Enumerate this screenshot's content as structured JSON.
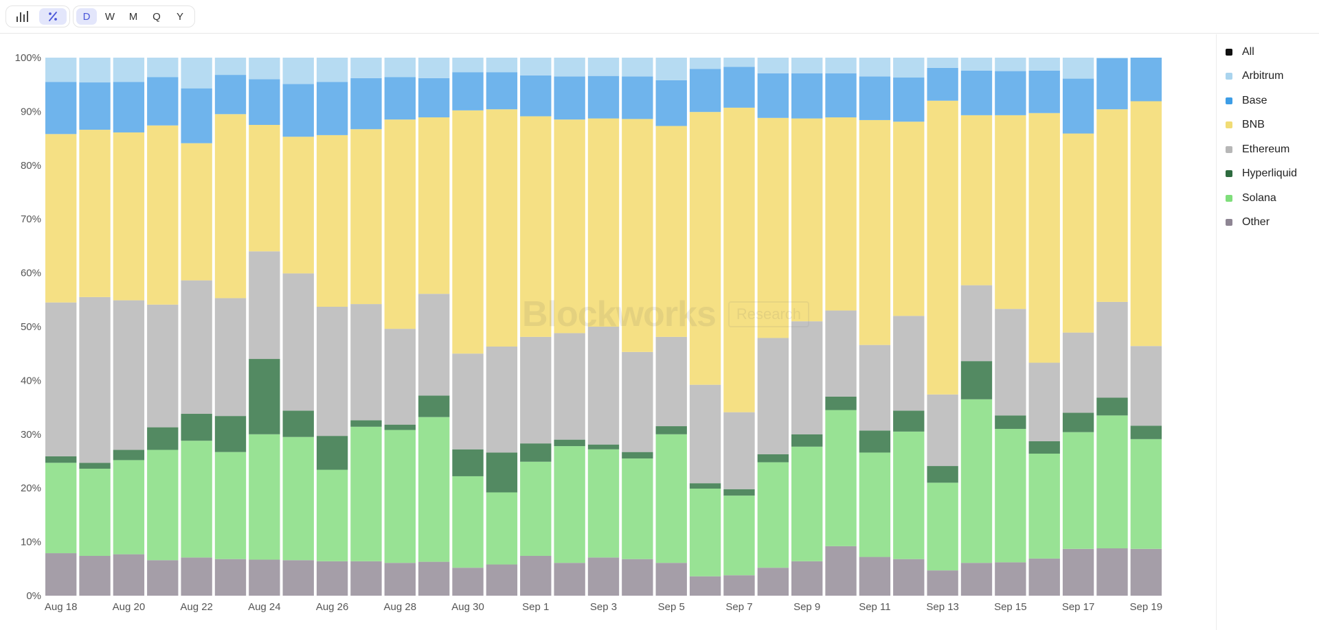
{
  "toolbar": {
    "chart_types": [
      {
        "icon": "bar-chart-icon",
        "active": false
      },
      {
        "icon": "percent-icon",
        "active": true
      }
    ],
    "ranges": [
      {
        "label": "D",
        "active": true
      },
      {
        "label": "W",
        "active": false
      },
      {
        "label": "M",
        "active": false
      },
      {
        "label": "Q",
        "active": false
      },
      {
        "label": "Y",
        "active": false
      }
    ]
  },
  "watermark": {
    "brand": "Blockworks",
    "tag": "Research"
  },
  "legend": [
    {
      "label": "All",
      "color": "#111111"
    },
    {
      "label": "Arbitrum",
      "color": "#aad4ee"
    },
    {
      "label": "Base",
      "color": "#3d9de6"
    },
    {
      "label": "BNB",
      "color": "#f1dc75"
    },
    {
      "label": "Ethereum",
      "color": "#b7b7b7"
    },
    {
      "label": "Hyperliquid",
      "color": "#2e6b3f"
    },
    {
      "label": "Solana",
      "color": "#7fde7b"
    },
    {
      "label": "Other",
      "color": "#8e8593"
    }
  ],
  "chart_data": {
    "type": "bar",
    "stacked": true,
    "normalized": true,
    "title": "",
    "xlabel": "",
    "ylabel": "",
    "ylim": [
      0,
      100
    ],
    "y_ticks": [
      "0%",
      "10%",
      "20%",
      "30%",
      "40%",
      "50%",
      "60%",
      "70%",
      "80%",
      "90%",
      "100%"
    ],
    "x_tick_labels": [
      "Aug 18",
      "Aug 20",
      "Aug 22",
      "Aug 24",
      "Aug 26",
      "Aug 28",
      "Aug 30",
      "Sep 1",
      "Sep 3",
      "Sep 5",
      "Sep 7",
      "Sep 9",
      "Sep 11",
      "Sep 13",
      "Sep 15",
      "Sep 17",
      "Sep 19"
    ],
    "categories": [
      "Aug 18",
      "Aug 19",
      "Aug 20",
      "Aug 21",
      "Aug 22",
      "Aug 23",
      "Aug 24",
      "Aug 25",
      "Aug 26",
      "Aug 27",
      "Aug 28",
      "Aug 29",
      "Aug 30",
      "Aug 31",
      "Sep 1",
      "Sep 2",
      "Sep 3",
      "Sep 4",
      "Sep 5",
      "Sep 6",
      "Sep 7",
      "Sep 8",
      "Sep 9",
      "Sep 10",
      "Sep 11",
      "Sep 12",
      "Sep 13",
      "Sep 14",
      "Sep 15",
      "Sep 16",
      "Sep 17",
      "Sep 18",
      "Sep 19"
    ],
    "series": [
      {
        "name": "Other",
        "color": "#a59ea8",
        "values": [
          7.9,
          7.4,
          7.7,
          6.6,
          7.1,
          6.8,
          6.7,
          6.6,
          6.4,
          6.4,
          6.1,
          6.3,
          5.2,
          5.8,
          7.4,
          6.1,
          7.1,
          6.8,
          6.1,
          3.6,
          3.8,
          5.2,
          6.4,
          9.2,
          7.2,
          6.8,
          4.7,
          6.1,
          6.2,
          6.9,
          8.7,
          8.8,
          8.7
        ]
      },
      {
        "name": "Solana",
        "color": "#98e294",
        "values": [
          16.8,
          16.2,
          17.5,
          20.5,
          21.7,
          19.9,
          23.3,
          22.9,
          17.0,
          25.0,
          24.7,
          26.9,
          17.0,
          13.4,
          17.5,
          21.7,
          20.1,
          18.7,
          23.9,
          16.3,
          14.8,
          19.6,
          21.3,
          25.3,
          19.4,
          23.7,
          16.3,
          30.4,
          24.8,
          19.5,
          21.7,
          24.7,
          20.4
        ]
      },
      {
        "name": "Hyperliquid",
        "color": "#538a62",
        "values": [
          1.2,
          1.1,
          1.9,
          4.2,
          5.0,
          6.7,
          14.0,
          4.9,
          6.3,
          1.2,
          1.0,
          4.0,
          5.0,
          7.4,
          3.4,
          1.2,
          0.9,
          1.2,
          1.5,
          1.0,
          1.2,
          1.5,
          2.3,
          2.5,
          4.1,
          3.9,
          3.1,
          7.1,
          2.5,
          2.3,
          3.6,
          3.3,
          2.5
        ]
      },
      {
        "name": "Ethereum",
        "color": "#c2c2c2",
        "values": [
          28.6,
          30.8,
          27.8,
          22.8,
          24.8,
          21.9,
          20.0,
          25.5,
          24.0,
          21.6,
          17.8,
          18.9,
          17.8,
          19.7,
          19.8,
          19.8,
          21.9,
          18.6,
          16.6,
          18.3,
          14.3,
          21.6,
          21.0,
          16.0,
          15.9,
          17.6,
          13.3,
          14.1,
          19.8,
          14.6,
          14.9,
          17.8,
          14.8
        ]
      },
      {
        "name": "BNB",
        "color": "#f5e084",
        "values": [
          31.3,
          31.1,
          31.2,
          33.3,
          25.5,
          34.2,
          23.5,
          25.4,
          31.9,
          32.5,
          38.9,
          32.8,
          45.2,
          44.1,
          41.0,
          39.7,
          38.7,
          43.3,
          39.2,
          50.7,
          56.6,
          40.9,
          37.7,
          35.9,
          41.8,
          36.1,
          54.6,
          31.6,
          36.0,
          46.4,
          37.0,
          35.8,
          45.5
        ]
      },
      {
        "name": "Base",
        "color": "#6fb4ec",
        "values": [
          9.7,
          8.8,
          9.4,
          9.0,
          10.2,
          7.3,
          8.5,
          9.8,
          9.9,
          9.5,
          7.9,
          7.3,
          7.1,
          6.9,
          7.6,
          8.0,
          7.9,
          7.9,
          8.5,
          8.0,
          7.6,
          8.3,
          8.4,
          8.2,
          8.1,
          8.2,
          6.1,
          8.3,
          8.2,
          7.9,
          10.2,
          9.5,
          8.1
        ]
      },
      {
        "name": "Arbitrum",
        "color": "#b6dbf2",
        "values": [
          4.5,
          4.6,
          4.5,
          3.6,
          5.7,
          3.2,
          4.0,
          4.9,
          4.5,
          3.8,
          3.6,
          3.8,
          2.7,
          2.7,
          3.3,
          3.5,
          3.4,
          3.5,
          4.2,
          2.1,
          1.7,
          2.9,
          2.9,
          2.9,
          3.5,
          3.7,
          1.9,
          2.4,
          2.5,
          2.4,
          3.9,
          0.1,
          0.0
        ]
      }
    ]
  }
}
